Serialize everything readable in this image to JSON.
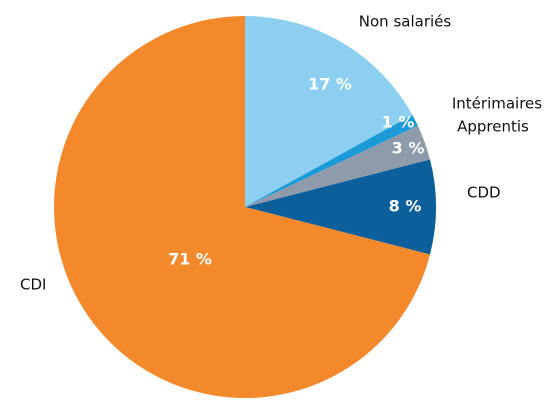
{
  "chart_data": {
    "type": "pie",
    "categories": [
      "Non salariés",
      "Intérimaires",
      "Apprentis",
      "CDD",
      "CDI"
    ],
    "values": [
      17,
      1,
      3,
      8,
      71
    ],
    "value_labels": [
      "17 %",
      "1 %",
      "3 %",
      "8 %",
      "71 %"
    ],
    "colors": [
      "#8ccff0",
      "#1b9ad8",
      "#8f9bab",
      "#0b609b",
      "#f3892b"
    ]
  }
}
